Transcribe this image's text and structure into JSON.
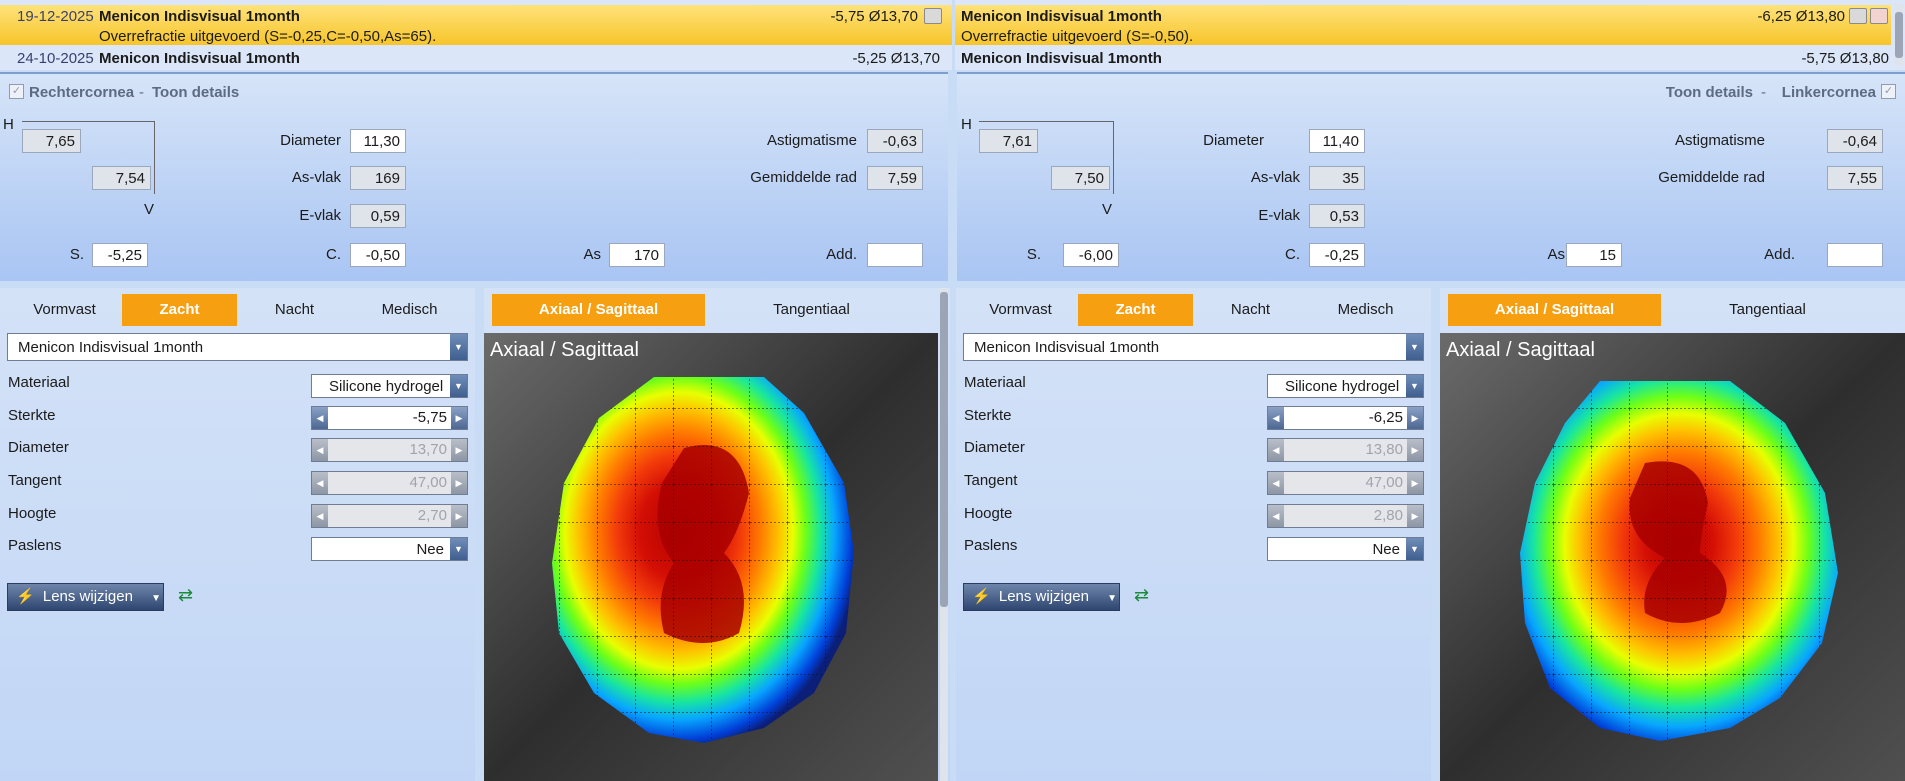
{
  "history": {
    "right": [
      {
        "date": "19-12-2025",
        "name": "Menicon Indisvisual 1month",
        "value": "-5,75 Ø13,70",
        "note": "Overrefractie uitgevoerd (S=-0,25,C=-0,50,As=65)."
      },
      {
        "date": "24-10-2025",
        "name": "Menicon Indisvisual 1month",
        "value": "-5,25 Ø13,70"
      }
    ],
    "left": [
      {
        "name": "Menicon Indisvisual 1month",
        "value": "-6,25 Ø13,80",
        "note": "Overrefractie uitgevoerd (S=-0,50)."
      },
      {
        "name": "Menicon Indisvisual 1month",
        "value": "-5,75 Ø13,80"
      }
    ]
  },
  "right_cornea": {
    "title": "Rechtercornea",
    "sep": "-",
    "details": "Toon details",
    "h_label": "H",
    "v_label": "V",
    "h_value": "7,65",
    "v_value": "7,54",
    "s_label": "S.",
    "s_value": "-5,25",
    "c_label": "C.",
    "c_value": "-0,50",
    "as_label": "As",
    "as_value": "170",
    "add_label": "Add.",
    "add_value": "",
    "diameter_label": "Diameter",
    "diameter_value": "11,30",
    "asvlak_label": "As-vlak",
    "asvlak_value": "169",
    "evlak_label": "E-vlak",
    "evlak_value": "0,59",
    "astig_label": "Astigmatisme",
    "astig_value": "-0,63",
    "gem_label": "Gemiddelde rad",
    "gem_value": "7,59"
  },
  "left_cornea": {
    "title": "Linkercornea",
    "sep": "-",
    "details": "Toon details",
    "h_label": "H",
    "v_label": "V",
    "h_value": "7,61",
    "v_value": "7,50",
    "s_label": "S.",
    "s_value": "-6,00",
    "c_label": "C.",
    "c_value": "-0,25",
    "as_label": "As",
    "as_value": "15",
    "add_label": "Add.",
    "add_value": "",
    "diameter_label": "Diameter",
    "diameter_value": "11,40",
    "asvlak_label": "As-vlak",
    "asvlak_value": "35",
    "evlak_label": "E-vlak",
    "evlak_value": "0,53",
    "astig_label": "Astigmatisme",
    "astig_value": "-0,64",
    "gem_label": "Gemiddelde rad",
    "gem_value": "7,55"
  },
  "lens_tabs": [
    "Vormvast",
    "Zacht",
    "Nacht",
    "Medisch"
  ],
  "active_lens_tab": "Zacht",
  "right_lens": {
    "product": "Menicon Indisvisual 1month",
    "materiaal_label": "Materiaal",
    "materiaal": "Silicone hydrogel",
    "sterkte_label": "Sterkte",
    "sterkte": "-5,75",
    "diameter_label": "Diameter",
    "diameter": "13,70",
    "tangent_label": "Tangent",
    "tangent": "47,00",
    "hoogte_label": "Hoogte",
    "hoogte": "2,70",
    "paslens_label": "Paslens",
    "paslens": "Nee",
    "button": "Lens wijzigen"
  },
  "left_lens": {
    "product": "Menicon Indisvisual 1month",
    "materiaal_label": "Materiaal",
    "materiaal": "Silicone hydrogel",
    "sterkte_label": "Sterkte",
    "sterkte": "-6,25",
    "diameter_label": "Diameter",
    "diameter": "13,80",
    "tangent_label": "Tangent",
    "tangent": "47,00",
    "hoogte_label": "Hoogte",
    "hoogte": "2,80",
    "paslens_label": "Paslens",
    "paslens": "Nee",
    "button": "Lens wijzigen"
  },
  "map_tabs": [
    "Axiaal / Sagittaal",
    "Tangentiaal"
  ],
  "active_map_tab": "Axiaal / Sagittaal",
  "map_title": "Axiaal / Sagittaal",
  "colors": {
    "accent": "#f59f11",
    "selected_row": "#ffd84a",
    "panel": "#c9dcf6"
  }
}
